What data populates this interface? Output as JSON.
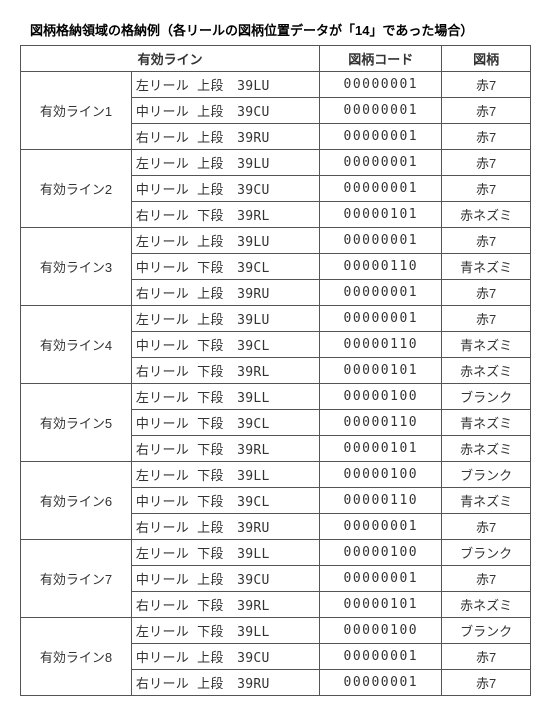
{
  "title": "図柄格納領域の格納例（各リールの図柄位置データが「14」であった場合）",
  "headers": {
    "col1a": "有効ライン",
    "col3": "図柄コード",
    "col4": "図柄"
  },
  "groups": [
    {
      "label": "有効ライン1",
      "rows": [
        {
          "reel": "左リール",
          "pos": "上段",
          "addr": "39LU",
          "code": "00000001",
          "sym": "赤7"
        },
        {
          "reel": "中リール",
          "pos": "上段",
          "addr": "39CU",
          "code": "00000001",
          "sym": "赤7"
        },
        {
          "reel": "右リール",
          "pos": "上段",
          "addr": "39RU",
          "code": "00000001",
          "sym": "赤7"
        }
      ]
    },
    {
      "label": "有効ライン2",
      "rows": [
        {
          "reel": "左リール",
          "pos": "上段",
          "addr": "39LU",
          "code": "00000001",
          "sym": "赤7"
        },
        {
          "reel": "中リール",
          "pos": "上段",
          "addr": "39CU",
          "code": "00000001",
          "sym": "赤7"
        },
        {
          "reel": "右リール",
          "pos": "下段",
          "addr": "39RL",
          "code": "00000101",
          "sym": "赤ネズミ"
        }
      ]
    },
    {
      "label": "有効ライン3",
      "rows": [
        {
          "reel": "左リール",
          "pos": "上段",
          "addr": "39LU",
          "code": "00000001",
          "sym": "赤7"
        },
        {
          "reel": "中リール",
          "pos": "下段",
          "addr": "39CL",
          "code": "00000110",
          "sym": "青ネズミ"
        },
        {
          "reel": "右リール",
          "pos": "上段",
          "addr": "39RU",
          "code": "00000001",
          "sym": "赤7"
        }
      ]
    },
    {
      "label": "有効ライン4",
      "rows": [
        {
          "reel": "左リール",
          "pos": "上段",
          "addr": "39LU",
          "code": "00000001",
          "sym": "赤7"
        },
        {
          "reel": "中リール",
          "pos": "下段",
          "addr": "39CL",
          "code": "00000110",
          "sym": "青ネズミ"
        },
        {
          "reel": "右リール",
          "pos": "下段",
          "addr": "39RL",
          "code": "00000101",
          "sym": "赤ネズミ"
        }
      ]
    },
    {
      "label": "有効ライン5",
      "rows": [
        {
          "reel": "左リール",
          "pos": "下段",
          "addr": "39LL",
          "code": "00000100",
          "sym": "ブランク"
        },
        {
          "reel": "中リール",
          "pos": "下段",
          "addr": "39CL",
          "code": "00000110",
          "sym": "青ネズミ"
        },
        {
          "reel": "右リール",
          "pos": "下段",
          "addr": "39RL",
          "code": "00000101",
          "sym": "赤ネズミ"
        }
      ]
    },
    {
      "label": "有効ライン6",
      "rows": [
        {
          "reel": "左リール",
          "pos": "下段",
          "addr": "39LL",
          "code": "00000100",
          "sym": "ブランク"
        },
        {
          "reel": "中リール",
          "pos": "下段",
          "addr": "39CL",
          "code": "00000110",
          "sym": "青ネズミ"
        },
        {
          "reel": "右リール",
          "pos": "上段",
          "addr": "39RU",
          "code": "00000001",
          "sym": "赤7"
        }
      ]
    },
    {
      "label": "有効ライン7",
      "rows": [
        {
          "reel": "左リール",
          "pos": "下段",
          "addr": "39LL",
          "code": "00000100",
          "sym": "ブランク"
        },
        {
          "reel": "中リール",
          "pos": "上段",
          "addr": "39CU",
          "code": "00000001",
          "sym": "赤7"
        },
        {
          "reel": "右リール",
          "pos": "下段",
          "addr": "39RL",
          "code": "00000101",
          "sym": "赤ネズミ"
        }
      ]
    },
    {
      "label": "有効ライン8",
      "rows": [
        {
          "reel": "左リール",
          "pos": "下段",
          "addr": "39LL",
          "code": "00000100",
          "sym": "ブランク"
        },
        {
          "reel": "中リール",
          "pos": "上段",
          "addr": "39CU",
          "code": "00000001",
          "sym": "赤7"
        },
        {
          "reel": "右リール",
          "pos": "上段",
          "addr": "39RU",
          "code": "00000001",
          "sym": "赤7"
        }
      ]
    }
  ]
}
